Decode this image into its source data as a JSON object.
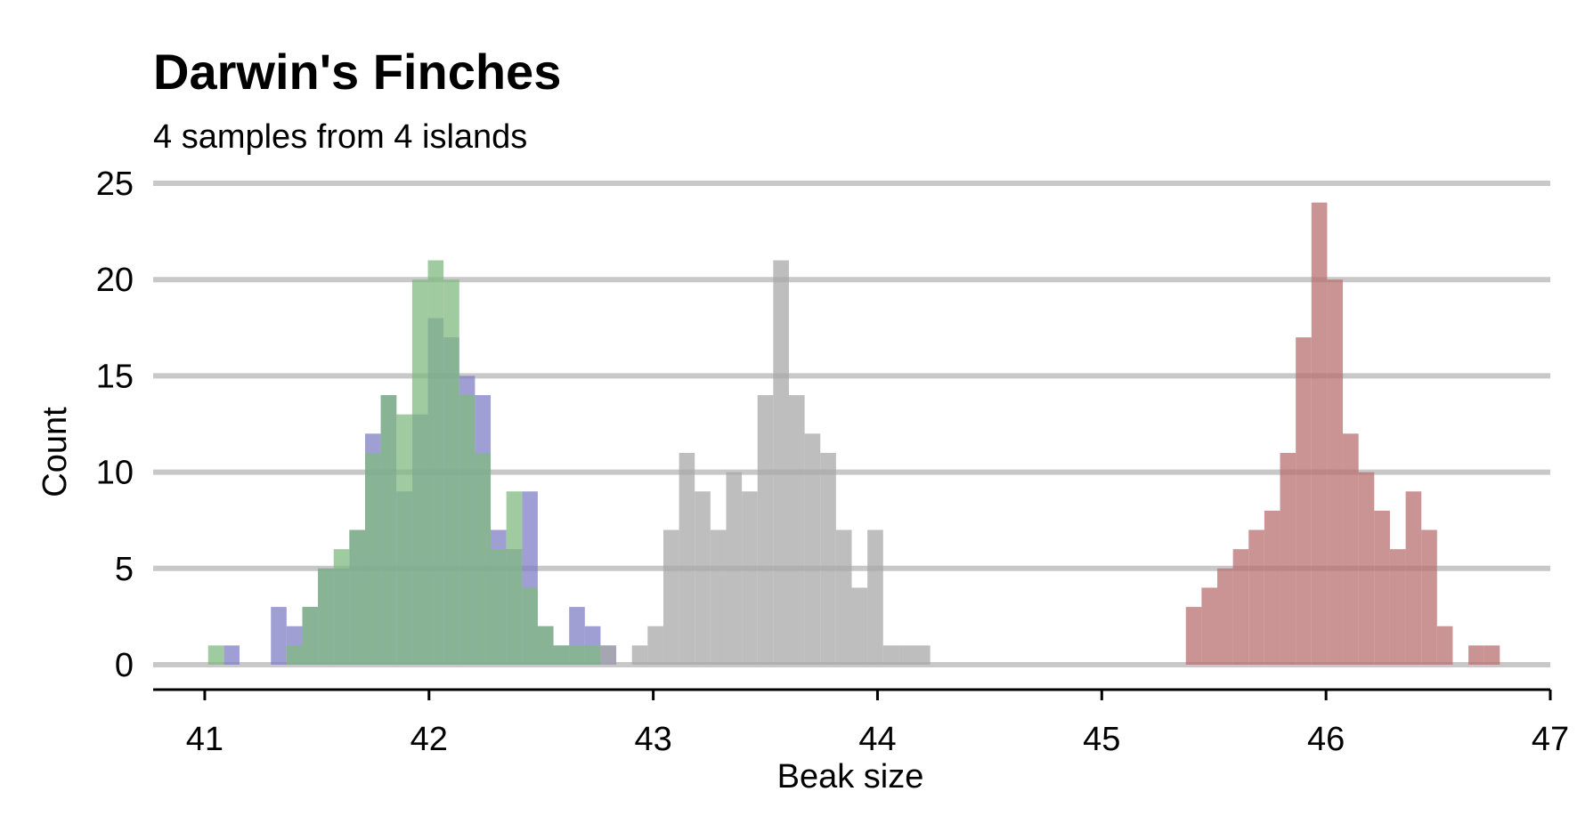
{
  "chart_data": {
    "type": "histogram",
    "title": "Darwin's Finches",
    "subtitle": "4 samples from 4 islands",
    "xlabel": "Beak size",
    "ylabel": "Count",
    "xlim": [
      40.77,
      47.0
    ],
    "ylim": [
      0,
      25
    ],
    "bin_width": 0.07,
    "x_ticks": [
      "41",
      "42",
      "43",
      "44",
      "45",
      "46",
      "47"
    ],
    "y_ticks": [
      "0",
      "5",
      "10",
      "15",
      "20",
      "25"
    ],
    "grid": "horizontal",
    "series": [
      {
        "color": "#7f7fc4",
        "bins": [
          {
            "x": 41.12,
            "count": 1
          },
          {
            "x": 41.33,
            "count": 3
          },
          {
            "x": 41.4,
            "count": 2
          },
          {
            "x": 41.47,
            "count": 3
          },
          {
            "x": 41.54,
            "count": 5
          },
          {
            "x": 41.61,
            "count": 5
          },
          {
            "x": 41.68,
            "count": 7
          },
          {
            "x": 41.75,
            "count": 12
          },
          {
            "x": 41.82,
            "count": 14
          },
          {
            "x": 41.89,
            "count": 9
          },
          {
            "x": 41.96,
            "count": 13
          },
          {
            "x": 42.03,
            "count": 18
          },
          {
            "x": 42.1,
            "count": 17
          },
          {
            "x": 42.17,
            "count": 15
          },
          {
            "x": 42.24,
            "count": 14
          },
          {
            "x": 42.31,
            "count": 7
          },
          {
            "x": 42.38,
            "count": 6
          },
          {
            "x": 42.45,
            "count": 9
          },
          {
            "x": 42.52,
            "count": 2
          },
          {
            "x": 42.59,
            "count": 1
          },
          {
            "x": 42.66,
            "count": 3
          },
          {
            "x": 42.73,
            "count": 2
          },
          {
            "x": 42.8,
            "count": 1
          }
        ]
      },
      {
        "color": "#80b980",
        "bins": [
          {
            "x": 41.05,
            "count": 1
          },
          {
            "x": 41.4,
            "count": 1
          },
          {
            "x": 41.47,
            "count": 3
          },
          {
            "x": 41.54,
            "count": 5
          },
          {
            "x": 41.61,
            "count": 6
          },
          {
            "x": 41.68,
            "count": 7
          },
          {
            "x": 41.75,
            "count": 11
          },
          {
            "x": 41.82,
            "count": 14
          },
          {
            "x": 41.89,
            "count": 13
          },
          {
            "x": 41.96,
            "count": 20
          },
          {
            "x": 42.03,
            "count": 21
          },
          {
            "x": 42.1,
            "count": 20
          },
          {
            "x": 42.17,
            "count": 14
          },
          {
            "x": 42.24,
            "count": 11
          },
          {
            "x": 42.31,
            "count": 6
          },
          {
            "x": 42.38,
            "count": 9
          },
          {
            "x": 42.45,
            "count": 4
          },
          {
            "x": 42.52,
            "count": 2
          },
          {
            "x": 42.59,
            "count": 1
          },
          {
            "x": 42.66,
            "count": 1
          },
          {
            "x": 42.73,
            "count": 1
          }
        ]
      },
      {
        "color": "#a8a8a8",
        "bins": [
          {
            "x": 42.8,
            "count": 1
          },
          {
            "x": 42.94,
            "count": 1
          },
          {
            "x": 43.01,
            "count": 2
          },
          {
            "x": 43.08,
            "count": 7
          },
          {
            "x": 43.15,
            "count": 11
          },
          {
            "x": 43.22,
            "count": 9
          },
          {
            "x": 43.29,
            "count": 7
          },
          {
            "x": 43.36,
            "count": 10
          },
          {
            "x": 43.43,
            "count": 9
          },
          {
            "x": 43.5,
            "count": 14
          },
          {
            "x": 43.57,
            "count": 21
          },
          {
            "x": 43.64,
            "count": 14
          },
          {
            "x": 43.71,
            "count": 12
          },
          {
            "x": 43.78,
            "count": 11
          },
          {
            "x": 43.85,
            "count": 7
          },
          {
            "x": 43.92,
            "count": 4
          },
          {
            "x": 43.99,
            "count": 7
          },
          {
            "x": 44.06,
            "count": 1
          },
          {
            "x": 44.13,
            "count": 1
          },
          {
            "x": 44.2,
            "count": 1
          }
        ]
      },
      {
        "color": "#b97070",
        "bins": [
          {
            "x": 45.41,
            "count": 3
          },
          {
            "x": 45.48,
            "count": 4
          },
          {
            "x": 45.55,
            "count": 5
          },
          {
            "x": 45.62,
            "count": 6
          },
          {
            "x": 45.69,
            "count": 7
          },
          {
            "x": 45.76,
            "count": 8
          },
          {
            "x": 45.83,
            "count": 11
          },
          {
            "x": 45.9,
            "count": 17
          },
          {
            "x": 45.97,
            "count": 24
          },
          {
            "x": 46.04,
            "count": 20
          },
          {
            "x": 46.11,
            "count": 12
          },
          {
            "x": 46.18,
            "count": 10
          },
          {
            "x": 46.25,
            "count": 8
          },
          {
            "x": 46.32,
            "count": 6
          },
          {
            "x": 46.39,
            "count": 9
          },
          {
            "x": 46.46,
            "count": 7
          },
          {
            "x": 46.53,
            "count": 2
          },
          {
            "x": 46.67,
            "count": 1
          },
          {
            "x": 46.74,
            "count": 1
          }
        ]
      }
    ]
  }
}
